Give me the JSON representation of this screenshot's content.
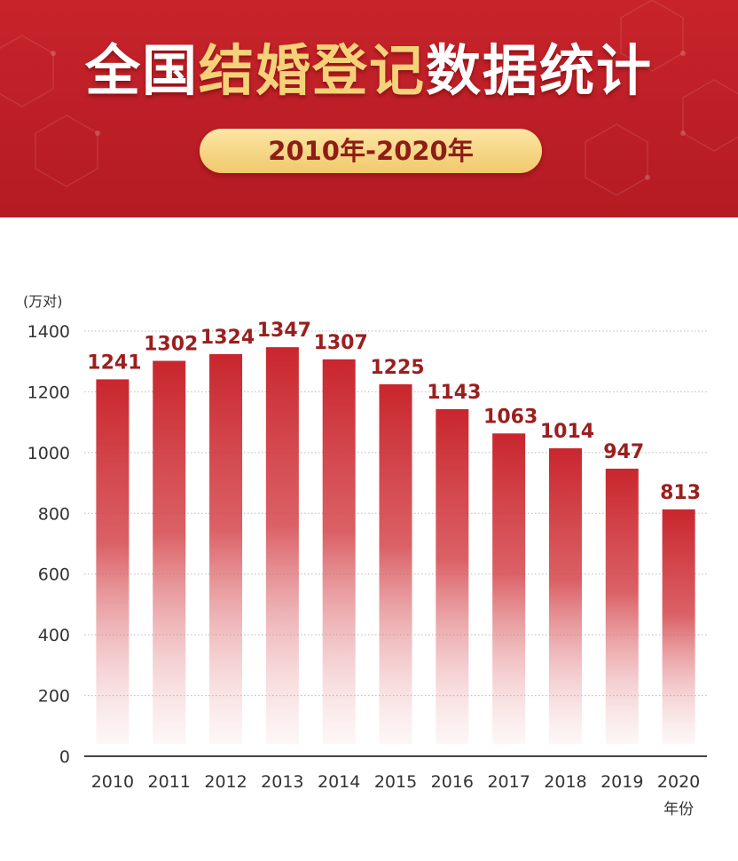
{
  "header": {
    "title_parts": {
      "p1": "全国",
      "p2": "结婚登记",
      "p3": "数据统计"
    },
    "period": "2010年-2020年",
    "colors": {
      "background": "#c0202a",
      "title_white": "#ffffff",
      "title_gold": "#f5d27a",
      "pill": "#f6d688"
    }
  },
  "chart_data": {
    "type": "bar",
    "categories": [
      "2010",
      "2011",
      "2012",
      "2013",
      "2014",
      "2015",
      "2016",
      "2017",
      "2018",
      "2019",
      "2020"
    ],
    "values": [
      1241,
      1302,
      1324,
      1347,
      1307,
      1225,
      1143,
      1063,
      1014,
      947,
      813
    ],
    "value_labels": [
      "1241",
      "1302",
      "1324",
      "1347",
      "1307",
      "1225",
      "1143",
      "1063",
      "1014",
      "947",
      "813"
    ],
    "ylabel": "(万对)",
    "xlabel": "年份",
    "ylim": [
      0,
      1400
    ],
    "yticks": [
      "0",
      "200",
      "400",
      "600",
      "800",
      "1000",
      "1200",
      "1400"
    ],
    "grid": true,
    "bar_color": "#c9262d",
    "label_color": "#9a1f1f"
  }
}
